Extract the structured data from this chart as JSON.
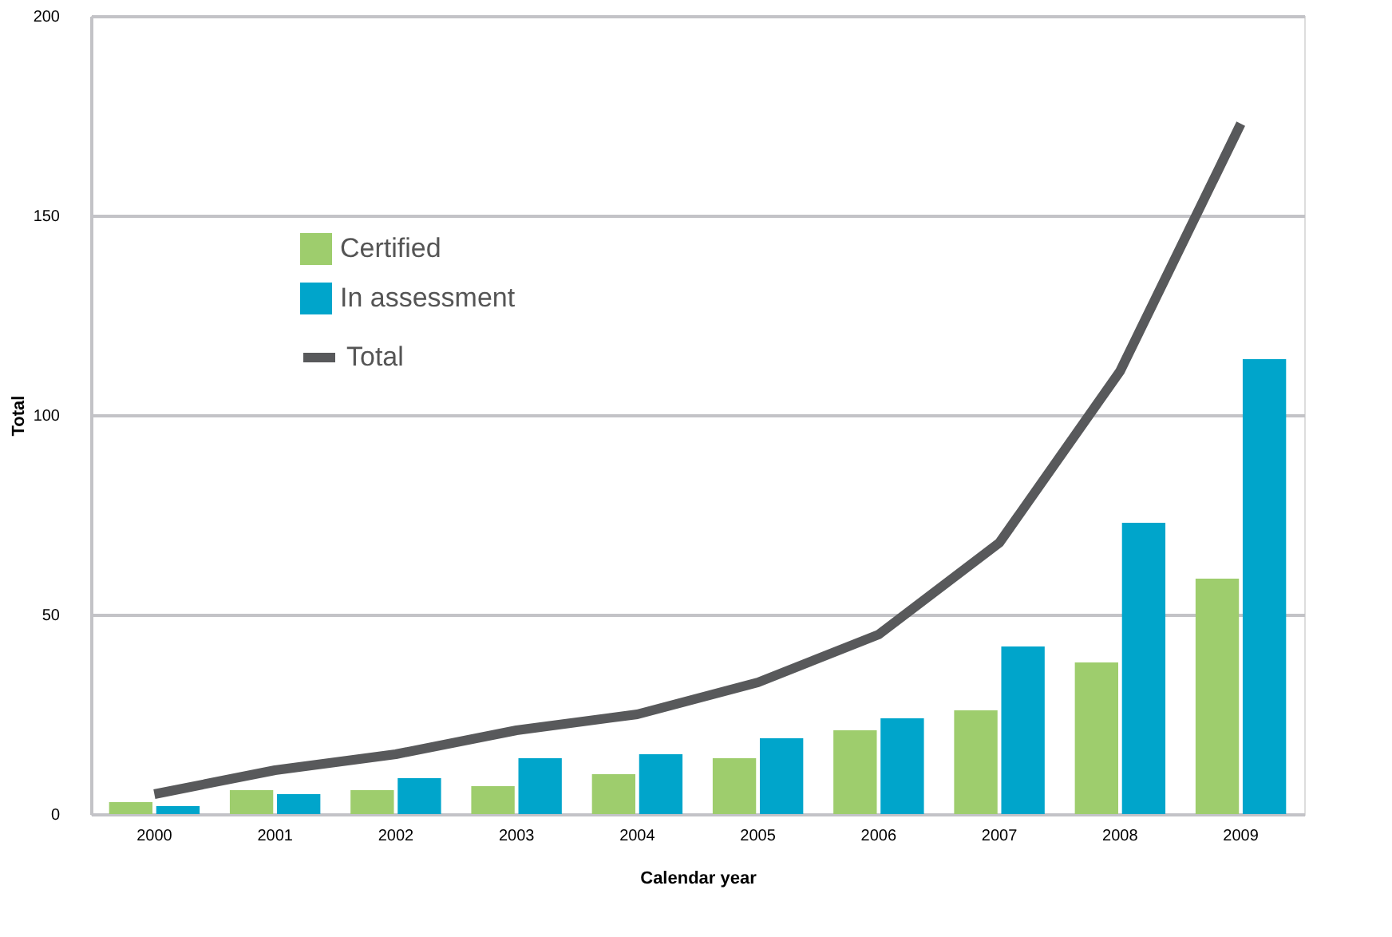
{
  "chart_data": {
    "type": "bar",
    "xlabel": "Calendar year",
    "ylabel": "Total",
    "categories": [
      "2000",
      "2001",
      "2002",
      "2003",
      "2004",
      "2005",
      "2006",
      "2007",
      "2008",
      "2009"
    ],
    "series": [
      {
        "name": "Certified",
        "color": "#9ecd6d",
        "values": [
          3,
          6,
          6,
          7,
          10,
          14,
          21,
          26,
          38,
          59
        ]
      },
      {
        "name": "In assessment",
        "color": "#00a5cb",
        "values": [
          2,
          5,
          9,
          14,
          15,
          19,
          24,
          42,
          73,
          114
        ]
      },
      {
        "name": "Total",
        "type": "line",
        "color": "#58595b",
        "values": [
          5,
          11,
          15,
          21,
          25,
          33,
          45,
          68,
          111,
          173
        ]
      }
    ],
    "ylim": [
      0,
      200
    ],
    "yticks": [
      0,
      50,
      100,
      150,
      200
    ],
    "grid": "y",
    "legend": "top left"
  }
}
